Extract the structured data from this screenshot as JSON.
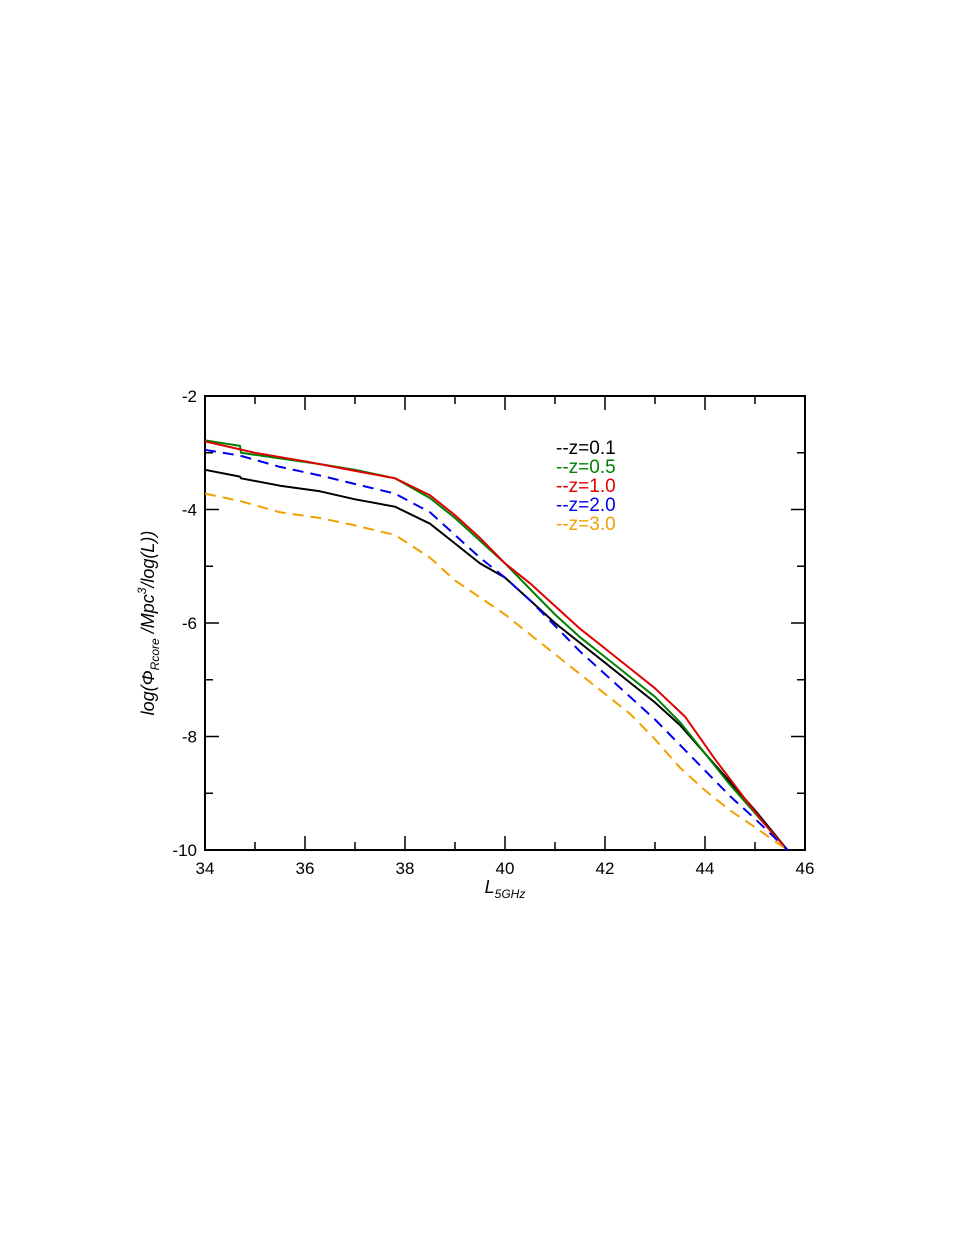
{
  "chart_data": {
    "type": "line",
    "xlabel": {
      "main": "L",
      "sub": "5GHz"
    },
    "ylabel": {
      "prefix": "log(Φ",
      "sub": "Rcore",
      "mid": " /Mpc",
      "sup": "3",
      "suffix": "/log(L))"
    },
    "xlim": [
      34,
      46
    ],
    "ylim": [
      -10,
      -2
    ],
    "xticks": [
      34,
      36,
      38,
      40,
      42,
      44,
      46
    ],
    "yticks": [
      -10,
      -8,
      -6,
      -4,
      -2
    ],
    "xtick_labels": [
      "34",
      "36",
      "38",
      "40",
      "42",
      "44",
      "46"
    ],
    "ytick_labels": [
      "-10",
      "-8",
      "-6",
      "-4",
      "-2"
    ],
    "legend_position": "top-center",
    "series": [
      {
        "name": "--z=0.1",
        "color": "#000000",
        "style": "solid",
        "x": [
          34.0,
          34.7,
          34.72,
          35.5,
          36.3,
          37.0,
          37.8,
          38.5,
          39.0,
          39.5,
          40.0,
          40.5,
          41.0,
          41.5,
          42.0,
          42.5,
          43.0,
          43.5,
          44.0,
          44.5,
          45.0,
          45.65
        ],
        "y": [
          -3.3,
          -3.42,
          -3.45,
          -3.58,
          -3.68,
          -3.82,
          -3.95,
          -4.25,
          -4.6,
          -4.95,
          -5.2,
          -5.6,
          -6.0,
          -6.35,
          -6.7,
          -7.05,
          -7.4,
          -7.8,
          -8.3,
          -8.8,
          -9.3,
          -10.0
        ]
      },
      {
        "name": "--z=0.5",
        "color": "#008000",
        "style": "solid",
        "x": [
          34.0,
          34.7,
          34.72,
          35.5,
          36.3,
          37.0,
          37.8,
          38.5,
          39.0,
          39.5,
          40.0,
          40.5,
          41.0,
          41.5,
          42.0,
          42.5,
          43.0,
          43.5,
          44.0,
          44.5,
          45.0,
          45.65
        ],
        "y": [
          -2.78,
          -2.88,
          -3.0,
          -3.1,
          -3.2,
          -3.3,
          -3.45,
          -3.8,
          -4.15,
          -4.55,
          -4.95,
          -5.4,
          -5.85,
          -6.25,
          -6.6,
          -6.95,
          -7.3,
          -7.75,
          -8.3,
          -8.85,
          -9.35,
          -10.0
        ]
      },
      {
        "name": "--z=1.0",
        "color": "#e00000",
        "style": "solid",
        "x": [
          34.0,
          35.0,
          36.0,
          37.0,
          37.8,
          38.5,
          39.0,
          39.5,
          40.0,
          40.5,
          41.0,
          41.5,
          42.0,
          42.5,
          43.0,
          43.6,
          44.2,
          44.8,
          45.2,
          45.65
        ],
        "y": [
          -2.8,
          -3.0,
          -3.15,
          -3.32,
          -3.45,
          -3.75,
          -4.1,
          -4.5,
          -4.95,
          -5.3,
          -5.7,
          -6.1,
          -6.45,
          -6.8,
          -7.15,
          -7.65,
          -8.4,
          -9.1,
          -9.55,
          -10.0
        ]
      },
      {
        "name": "--z=2.0",
        "color": "#0000ee",
        "style": "dashed",
        "x": [
          34.0,
          34.7,
          35.5,
          36.3,
          37.0,
          37.8,
          38.5,
          39.0,
          39.5,
          40.0,
          40.5,
          41.0,
          41.5,
          42.0,
          42.5,
          43.0,
          43.5,
          44.0,
          44.5,
          45.0,
          45.65
        ],
        "y": [
          -2.95,
          -3.05,
          -3.25,
          -3.4,
          -3.55,
          -3.72,
          -4.05,
          -4.45,
          -4.85,
          -5.2,
          -5.6,
          -6.05,
          -6.5,
          -6.9,
          -7.3,
          -7.7,
          -8.15,
          -8.6,
          -9.05,
          -9.45,
          -10.0
        ]
      },
      {
        "name": "--z=3.0",
        "color": "#f0a000",
        "style": "dashed",
        "x": [
          34.0,
          34.7,
          35.5,
          36.3,
          37.0,
          37.8,
          38.5,
          39.0,
          39.5,
          40.0,
          40.5,
          41.0,
          41.5,
          42.0,
          42.5,
          43.0,
          43.5,
          44.0,
          44.5,
          45.0,
          45.65
        ],
        "y": [
          -3.72,
          -3.85,
          -4.05,
          -4.15,
          -4.28,
          -4.45,
          -4.85,
          -5.25,
          -5.55,
          -5.85,
          -6.2,
          -6.55,
          -6.9,
          -7.25,
          -7.6,
          -8.05,
          -8.55,
          -8.95,
          -9.3,
          -9.6,
          -10.0
        ]
      }
    ]
  }
}
